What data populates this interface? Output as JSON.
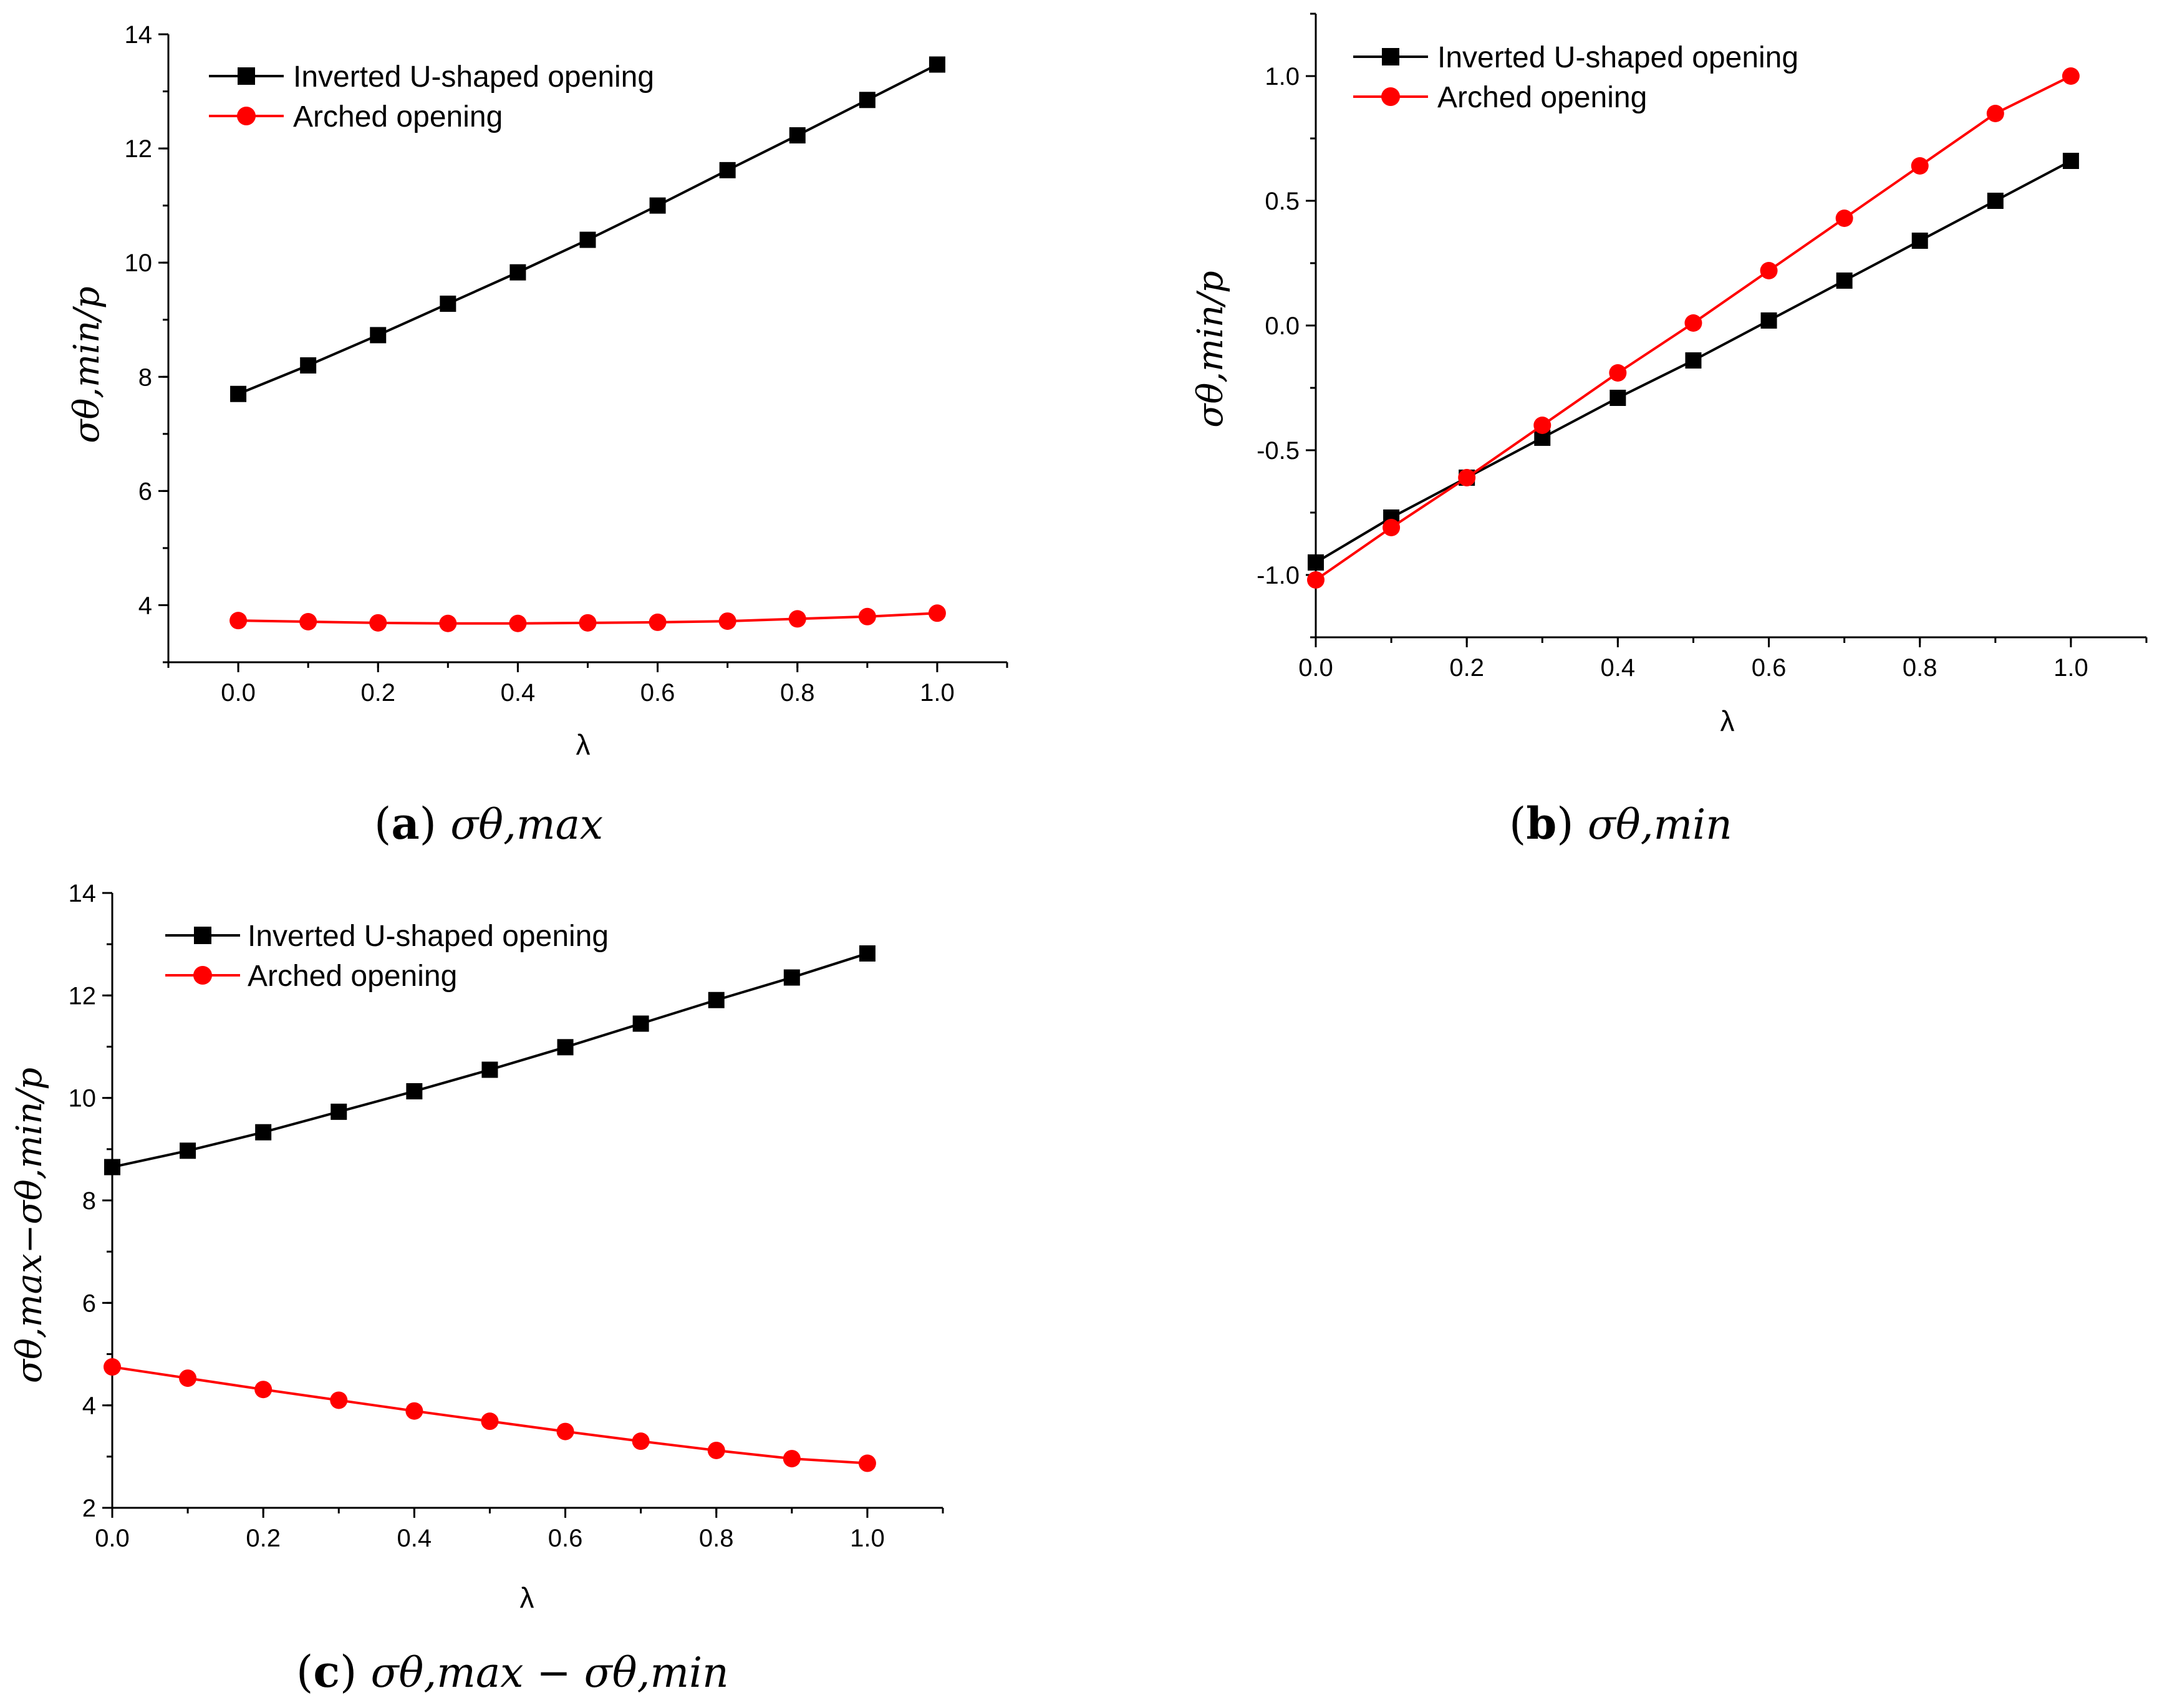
{
  "chart_data": [
    {
      "id": "a",
      "type": "line",
      "caption_label": "a",
      "caption_text": "σθ,max",
      "xlabel": "λ",
      "ylabel": "σθ,min/p",
      "xlim": [
        -0.1,
        1.1
      ],
      "ylim": [
        3,
        14
      ],
      "xticks": [
        "0.0",
        "0.2",
        "0.4",
        "0.6",
        "0.8",
        "1.0"
      ],
      "yticks": [
        "4",
        "6",
        "8",
        "10",
        "12",
        "14"
      ],
      "legend_position": "top-left",
      "x": [
        0.0,
        0.1,
        0.2,
        0.3,
        0.4,
        0.5,
        0.6,
        0.7,
        0.8,
        0.9,
        1.0
      ],
      "series": [
        {
          "name": "Inverted U-shaped opening",
          "color": "#000000",
          "marker": "square",
          "values": [
            7.7,
            8.2,
            8.73,
            9.28,
            9.83,
            10.4,
            11.0,
            11.62,
            12.23,
            12.85,
            13.47
          ]
        },
        {
          "name": "Arched opening",
          "color": "#ff0000",
          "marker": "circle",
          "values": [
            3.73,
            3.71,
            3.69,
            3.68,
            3.68,
            3.69,
            3.7,
            3.72,
            3.76,
            3.8,
            3.86
          ]
        }
      ]
    },
    {
      "id": "b",
      "type": "line",
      "caption_label": "b",
      "caption_text": "σθ,min",
      "xlabel": "λ",
      "ylabel": "σθ,min/p",
      "xlim": [
        0.0,
        1.1
      ],
      "ylim": [
        -1.25,
        1.25
      ],
      "xticks": [
        "0.0",
        "0.2",
        "0.4",
        "0.6",
        "0.8",
        "1.0"
      ],
      "yticks": [
        "-1.0",
        "-0.5",
        "0.0",
        "0.5",
        "1.0"
      ],
      "legend_position": "top-left",
      "x": [
        0.0,
        0.1,
        0.2,
        0.3,
        0.4,
        0.5,
        0.6,
        0.7,
        0.8,
        0.9,
        1.0
      ],
      "series": [
        {
          "name": "Inverted U-shaped opening",
          "color": "#000000",
          "marker": "square",
          "values": [
            -0.95,
            -0.77,
            -0.61,
            -0.45,
            -0.29,
            -0.14,
            0.02,
            0.18,
            0.34,
            0.5,
            0.66
          ]
        },
        {
          "name": "Arched opening",
          "color": "#ff0000",
          "marker": "circle",
          "values": [
            -1.02,
            -0.81,
            -0.61,
            -0.4,
            -0.19,
            0.01,
            0.22,
            0.43,
            0.64,
            0.85,
            1.0
          ]
        }
      ]
    },
    {
      "id": "c",
      "type": "line",
      "caption_label": "c",
      "caption_text": "σθ,max − σθ,min",
      "xlabel": "λ",
      "ylabel": "σθ,max−σθ,min/p",
      "xlim": [
        0.0,
        1.1
      ],
      "ylim": [
        2,
        14
      ],
      "xticks": [
        "0.0",
        "0.2",
        "0.4",
        "0.6",
        "0.8",
        "1.0"
      ],
      "yticks": [
        "2",
        "4",
        "6",
        "8",
        "10",
        "12",
        "14"
      ],
      "legend_position": "top-left",
      "x": [
        0.0,
        0.1,
        0.2,
        0.3,
        0.4,
        0.5,
        0.6,
        0.7,
        0.8,
        0.9,
        1.0
      ],
      "series": [
        {
          "name": "Inverted U-shaped opening",
          "color": "#000000",
          "marker": "square",
          "values": [
            8.65,
            8.97,
            9.33,
            9.73,
            10.13,
            10.55,
            10.99,
            11.45,
            11.91,
            12.35,
            12.82
          ]
        },
        {
          "name": "Arched opening",
          "color": "#ff0000",
          "marker": "circle",
          "values": [
            4.75,
            4.53,
            4.31,
            4.1,
            3.89,
            3.69,
            3.49,
            3.3,
            3.12,
            2.96,
            2.87
          ]
        }
      ]
    }
  ]
}
